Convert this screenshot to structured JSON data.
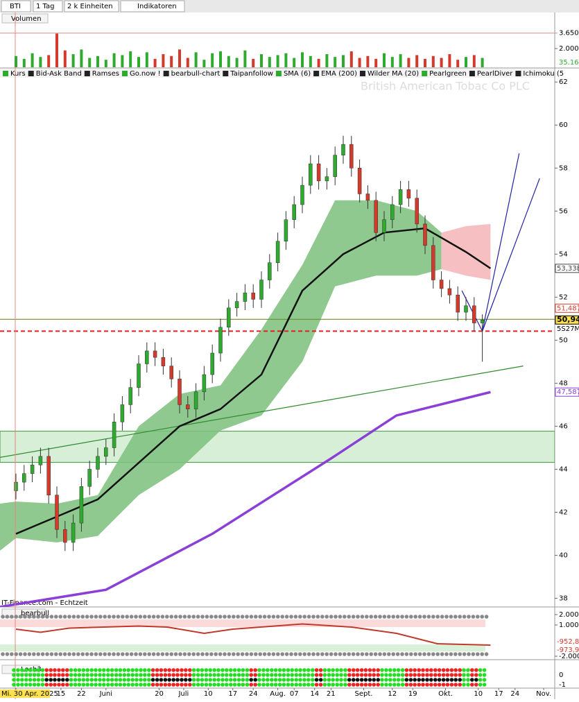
{
  "toolbar": {
    "symbol": "BTI",
    "interval": "1 Tag",
    "units": "2 k Einheiten",
    "indicators": "Indikatoren"
  },
  "indicator_bar": [
    "Kurs",
    "Bid-Ask Band",
    "Ramses",
    "Go.now !",
    "bearbull-chart",
    "Taipanfollow",
    "SMA (6)",
    "EMA (200)",
    "Wilder MA (20)",
    "Pearlgreen",
    "PearlDiver",
    "Ichimoku (5"
  ],
  "watermark": "British American Tobac Co PLC",
  "source": "IT-Finance.com - Echtzeit",
  "chart_data": {
    "type": "candlestick",
    "x": [
      0,
      2,
      4,
      6,
      8,
      10,
      12,
      14,
      16,
      18,
      20,
      22,
      24,
      26,
      28,
      30,
      32,
      34,
      36,
      38,
      40,
      42,
      44,
      46,
      48,
      50,
      52,
      54,
      56,
      58,
      60,
      62,
      64,
      66,
      68,
      70,
      72,
      74,
      76,
      78,
      80,
      82,
      84,
      86,
      88,
      90,
      92,
      94,
      96,
      98,
      100,
      102,
      104,
      106,
      108,
      110,
      112,
      114
    ],
    "open": [
      43.0,
      43.4,
      43.8,
      44.2,
      44.6,
      42.8,
      41.2,
      40.6,
      41.5,
      43.2,
      44.0,
      44.6,
      45.0,
      46.2,
      47.0,
      47.8,
      48.9,
      49.5,
      49.2,
      48.8,
      48.2,
      47.0,
      46.8,
      47.6,
      48.4,
      49.4,
      50.6,
      51.5,
      51.8,
      52.2,
      51.9,
      52.8,
      53.6,
      54.6,
      55.6,
      56.3,
      57.2,
      58.2,
      57.4,
      57.6,
      58.6,
      59.1,
      58.0,
      56.8,
      56.5,
      55.0,
      55.6,
      56.3,
      57.0,
      56.6,
      55.4,
      54.4,
      52.8,
      52.4,
      52.1,
      51.3,
      51.6,
      50.8
    ],
    "high": [
      43.8,
      44.2,
      44.6,
      45.0,
      45.0,
      43.2,
      41.6,
      41.9,
      43.6,
      44.4,
      45.0,
      45.4,
      46.6,
      47.4,
      48.2,
      49.3,
      49.9,
      49.9,
      49.6,
      49.2,
      48.6,
      47.4,
      48.0,
      48.8,
      49.8,
      51.0,
      51.9,
      52.2,
      52.6,
      52.6,
      53.2,
      54.0,
      55.0,
      56.0,
      56.7,
      57.6,
      58.6,
      58.6,
      58.0,
      59.0,
      59.5,
      59.5,
      58.4,
      57.2,
      56.9,
      56.0,
      56.7,
      57.4,
      57.4,
      57.0,
      55.8,
      54.8,
      53.2,
      52.8,
      52.5,
      52.0,
      52.0,
      51.2
    ],
    "low": [
      42.6,
      43.0,
      43.4,
      43.8,
      42.4,
      40.8,
      40.2,
      40.2,
      41.1,
      42.8,
      43.6,
      44.2,
      44.6,
      45.8,
      46.6,
      47.4,
      48.5,
      48.8,
      48.4,
      47.8,
      46.6,
      46.4,
      46.4,
      47.2,
      48.0,
      49.0,
      50.2,
      51.1,
      51.4,
      51.5,
      51.5,
      52.4,
      53.2,
      54.2,
      55.2,
      55.9,
      56.8,
      57.0,
      57.0,
      57.2,
      58.2,
      57.6,
      56.4,
      56.1,
      54.6,
      54.6,
      55.2,
      55.9,
      56.2,
      55.0,
      54.0,
      52.4,
      52.0,
      51.7,
      50.9,
      50.9,
      50.4,
      49.0
    ],
    "close": [
      43.4,
      43.8,
      44.2,
      44.6,
      42.8,
      41.2,
      40.6,
      41.5,
      43.2,
      44.0,
      44.6,
      45.0,
      46.2,
      47.0,
      47.8,
      48.9,
      49.5,
      49.2,
      48.8,
      48.2,
      47.0,
      46.8,
      47.6,
      48.4,
      49.4,
      50.6,
      51.5,
      51.8,
      52.2,
      51.9,
      52.8,
      53.6,
      54.6,
      55.6,
      56.3,
      57.2,
      58.2,
      57.4,
      57.6,
      58.6,
      59.1,
      58.0,
      56.8,
      56.5,
      55.0,
      55.6,
      56.3,
      57.0,
      56.6,
      55.4,
      54.4,
      52.8,
      52.4,
      52.1,
      51.3,
      51.6,
      50.8,
      50.94
    ],
    "up_color": "#2eaa2e",
    "down_color": "#d33a2c",
    "ylim": [
      37.6,
      62.2
    ],
    "yticks": [
      38,
      40,
      42,
      44,
      46,
      48,
      50,
      52,
      54,
      56,
      58,
      60,
      62
    ],
    "xlim": [
      -4,
      131
    ],
    "xticks": [
      {
        "value": 0,
        "label": "Mi. 30 Apr. 2025"
      },
      {
        "value": 11,
        "label": "15"
      },
      {
        "value": 16,
        "label": "22"
      },
      {
        "value": 22,
        "label": "Juni"
      },
      {
        "value": 35,
        "label": "20"
      },
      {
        "value": 41,
        "label": "Juli"
      },
      {
        "value": 47,
        "label": "10"
      },
      {
        "value": 53,
        "label": "17"
      },
      {
        "value": 58,
        "label": "24"
      },
      {
        "value": 64,
        "label": "Aug."
      },
      {
        "value": 68,
        "label": "07"
      },
      {
        "value": 73,
        "label": "14"
      },
      {
        "value": 77,
        "label": "21"
      },
      {
        "value": 85,
        "label": "Sept."
      },
      {
        "value": 92,
        "label": "12"
      },
      {
        "value": 97,
        "label": "19"
      },
      {
        "value": 105,
        "label": "Okt."
      },
      {
        "value": 113,
        "label": "10"
      },
      {
        "value": 118,
        "label": "17"
      },
      {
        "value": 122,
        "label": "24"
      },
      {
        "value": 129,
        "label": "Nov."
      }
    ],
    "lines": [
      {
        "name": "Wilder MA (20)",
        "color": "#111111",
        "x": [
          0,
          10,
          20,
          30,
          40,
          50,
          60,
          70,
          80,
          90,
          100,
          110,
          116
        ],
        "values": [
          41.0,
          41.8,
          42.6,
          44.3,
          46.0,
          46.8,
          48.4,
          52.3,
          54.0,
          55.0,
          55.2,
          54.1,
          53.338
        ]
      },
      {
        "name": "EMA (200)",
        "color": "#8a3fd6",
        "x": [
          -4,
          22,
          48,
          77,
          93,
          116
        ],
        "values": [
          37.6,
          38.4,
          41.0,
          44.5,
          46.5,
          47.587
        ]
      }
    ],
    "cloud": {
      "color": "#7cc07c",
      "x": [
        -4,
        0,
        10,
        20,
        30,
        40,
        50,
        60,
        70,
        78,
        88,
        98,
        104
      ],
      "upper": [
        42.4,
        42.5,
        42.4,
        42.8,
        46.0,
        47.5,
        47.9,
        50.5,
        53.5,
        56.5,
        56.5,
        56.0,
        55.0
      ],
      "lower": [
        40.2,
        40.8,
        40.6,
        40.9,
        42.8,
        44.0,
        45.8,
        46.5,
        49.0,
        52.5,
        53.0,
        53.0,
        53.3
      ]
    },
    "cloud_bear": {
      "color": "#f5b5b8",
      "x": [
        104,
        110,
        116
      ],
      "upper": [
        55.0,
        55.3,
        55.4
      ],
      "lower": [
        53.3,
        53.0,
        52.8
      ]
    },
    "band": {
      "color": "#d6efd6",
      "from": 44.32,
      "to": 45.77
    },
    "hlines": [
      {
        "value": 50.42,
        "color": "#e02020",
        "dash": true
      },
      {
        "value": 50.97,
        "color": "#6b8e23",
        "dash": false
      }
    ],
    "trendlines": [
      {
        "color": "#2e8b2e",
        "x": [
          -4,
          124
        ],
        "values": [
          44.55,
          48.8
        ]
      },
      {
        "color": "#2020a0",
        "x": [
          109,
          114,
          123
        ],
        "values": [
          52.3,
          50.42,
          58.68
        ]
      },
      {
        "color": "#2020a0",
        "x": [
          114,
          128
        ],
        "values": [
          50.42,
          57.52
        ]
      }
    ],
    "price_labels": [
      {
        "value": 53.338,
        "label": "53,338",
        "color": "#444"
      },
      {
        "value": 51.487,
        "label": "51,487",
        "color": "#d33a2c"
      },
      {
        "value": 50.94,
        "label": "50,94",
        "color": "#000",
        "bg": "#ffe14d"
      },
      {
        "value": 47.587,
        "label": "47,587",
        "color": "#8a3fd6"
      }
    ],
    "timer": "5S27M"
  },
  "volume": {
    "title": "Volumen",
    "values": [
      1200,
      900,
      1500,
      1100,
      1300,
      3600,
      1800,
      1400,
      1900,
      1000,
      1200,
      800,
      1500,
      1300,
      1700,
      1100,
      1600,
      900,
      1400,
      1200,
      1900,
      1000,
      1600,
      800,
      1500,
      1700,
      1200,
      1000,
      1800,
      900,
      1400,
      1100,
      1300,
      1500,
      1000,
      1600,
      1200,
      900,
      1400,
      1100,
      1300,
      1700,
      1000,
      1200,
      900,
      1500,
      1100,
      1400,
      1000,
      1300,
      900,
      1200,
      1000,
      1400,
      800,
      1100,
      1300,
      1000
    ],
    "ylim": [
      0,
      5850
    ],
    "yticks": [
      {
        "value": 3650,
        "label": "3.650k"
      },
      {
        "value": 2000,
        "label": "2.000k"
      }
    ],
    "readout": "35.165"
  },
  "bearbull": {
    "title": "bearbull",
    "color": "#c0392b",
    "x": [
      0,
      6,
      13,
      30,
      37,
      46,
      53,
      70,
      82,
      93,
      103,
      116
    ],
    "values": [
      0.6,
      0.3,
      0.7,
      0.9,
      0.8,
      0.2,
      0.6,
      1.1,
      0.8,
      0.2,
      -0.8,
      -0.93
    ],
    "ylim": [
      -2.3,
      2.3
    ],
    "yticks": [
      {
        "value": 2,
        "label": "2.000"
      },
      {
        "value": 1,
        "label": "1.000"
      },
      {
        "value": -2,
        "label": "-2.000"
      }
    ],
    "readouts": [
      "-952,80",
      "-973,90"
    ]
  },
  "loch3": {
    "title": "Loch3",
    "ticks": [
      "0",
      "-1"
    ]
  }
}
